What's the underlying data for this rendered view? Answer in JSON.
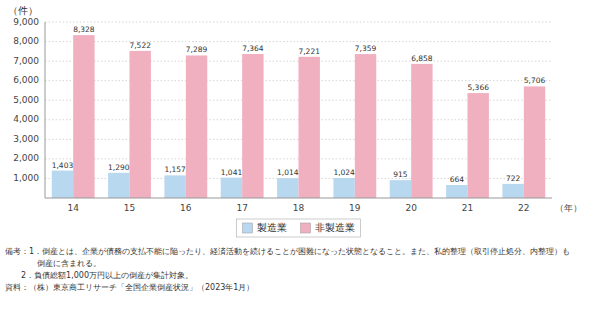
{
  "chart_data": {
    "type": "bar",
    "categories": [
      "14",
      "15",
      "16",
      "17",
      "18",
      "19",
      "20",
      "21",
      "22"
    ],
    "series": [
      {
        "name": "製造業",
        "color": "#b8d8f0",
        "values": [
          1403,
          1290,
          1157,
          1041,
          1014,
          1024,
          915,
          664,
          722
        ],
        "value_labels": [
          "1,403",
          "1,290",
          "1,157",
          "1,041",
          "1,014",
          "1,024",
          "915",
          "664",
          "722"
        ]
      },
      {
        "name": "非製造業",
        "color": "#f0b0c0",
        "values": [
          8328,
          7522,
          7289,
          7364,
          7221,
          7359,
          6858,
          5366,
          5706
        ],
        "value_labels": [
          "8,328",
          "7,522",
          "7,289",
          "7,364",
          "7,221",
          "7,359",
          "6,858",
          "5,366",
          "5,706"
        ]
      }
    ],
    "y_label": "（件）",
    "x_label": "（年）",
    "ylim": [
      0,
      9000
    ],
    "yticks": [
      {
        "value": 1000,
        "label": "1,000"
      },
      {
        "value": 2000,
        "label": "2,000"
      },
      {
        "value": 3000,
        "label": "3,000"
      },
      {
        "value": 4000,
        "label": "4,000"
      },
      {
        "value": 5000,
        "label": "5,000"
      },
      {
        "value": 6000,
        "label": "6,000"
      },
      {
        "value": 7000,
        "label": "7,000"
      },
      {
        "value": 8000,
        "label": "8,000"
      },
      {
        "value": 9000,
        "label": "9,000"
      }
    ],
    "grid": true,
    "legend": "bottom",
    "data_labels": true,
    "annotations": [
      "備考：1．倒産とは、企業が債務の支払不能に陥ったり、経済活動を続けることが困難になった状態となること。また、私的整理（取引停止処分、内整理）も",
      "　　　　倒産に含まれる。",
      "　　2．負債総額1,000万円以上の倒産が集計対象。",
      "資料：（株）東京商工リサーチ「全国企業倒産状況」（2023年1月）"
    ]
  }
}
